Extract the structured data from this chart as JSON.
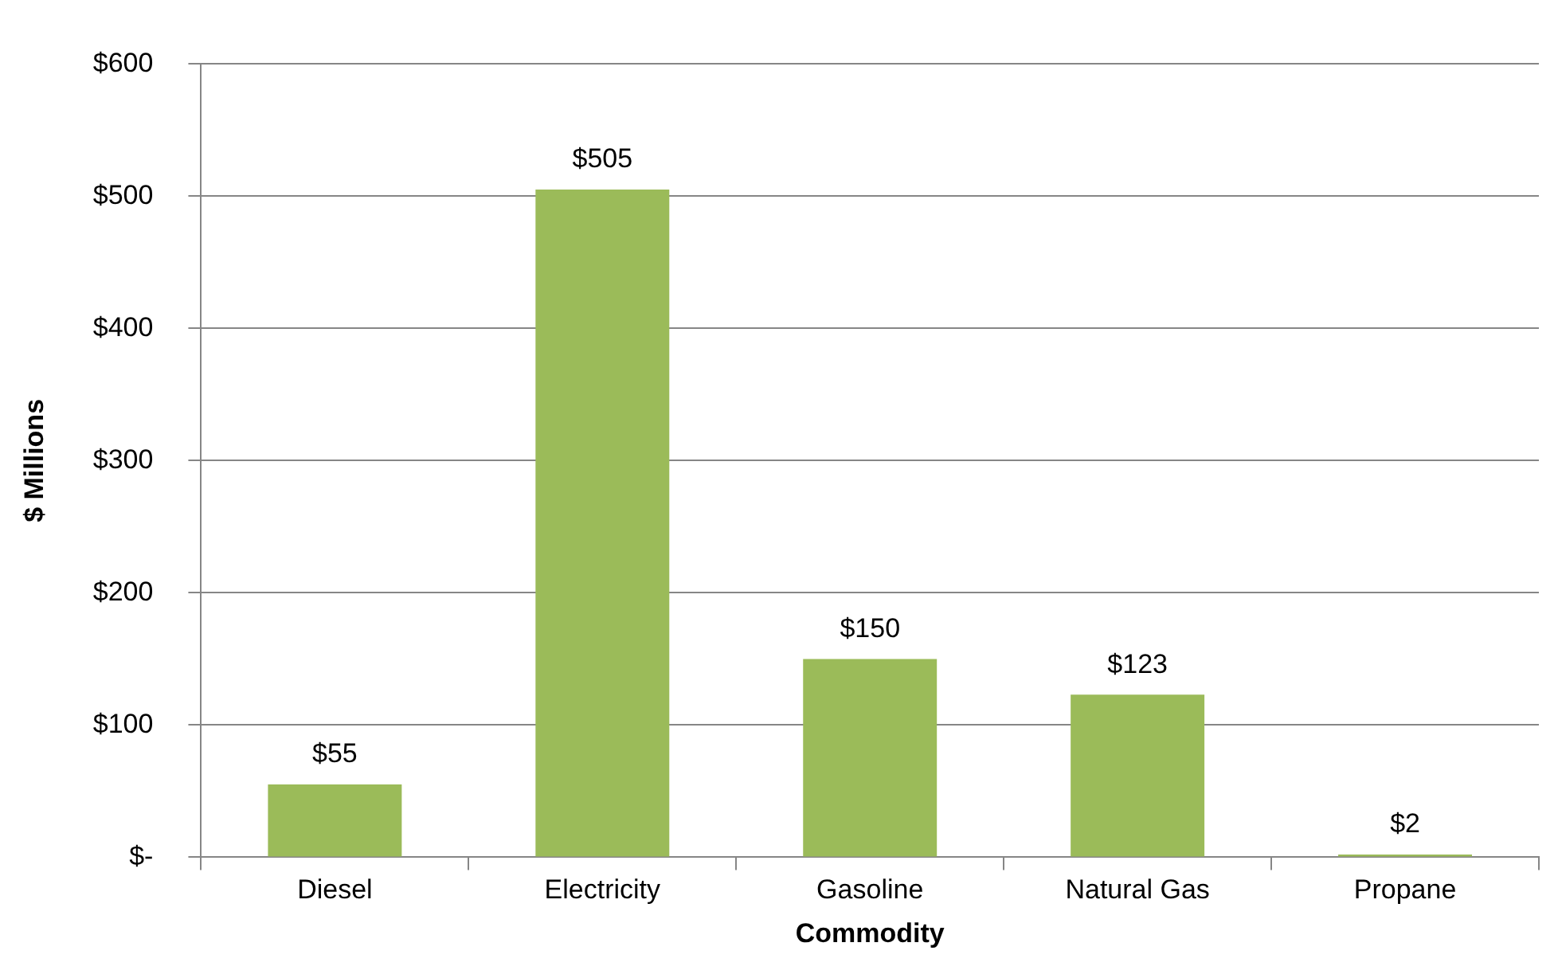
{
  "chart_data": {
    "type": "bar",
    "xlabel": "Commodity",
    "ylabel": "$ Millions",
    "categories": [
      "Diesel",
      "Electricity",
      "Gasoline",
      "Natural Gas",
      "Propane"
    ],
    "values": [
      55,
      505,
      150,
      123,
      2
    ],
    "value_labels": [
      "$55",
      "$505",
      "$150",
      "$123",
      "$2"
    ],
    "color": "#9bbb59",
    "ylim": [
      0,
      600
    ],
    "yticks": [
      {
        "value": 0,
        "label": "$-"
      },
      {
        "value": 100,
        "label": "$100"
      },
      {
        "value": 200,
        "label": "$200"
      },
      {
        "value": 300,
        "label": "$300"
      },
      {
        "value": 400,
        "label": "$400"
      },
      {
        "value": 500,
        "label": "$500"
      },
      {
        "value": 600,
        "label": "$600"
      }
    ],
    "grid": "y",
    "legend": false
  }
}
